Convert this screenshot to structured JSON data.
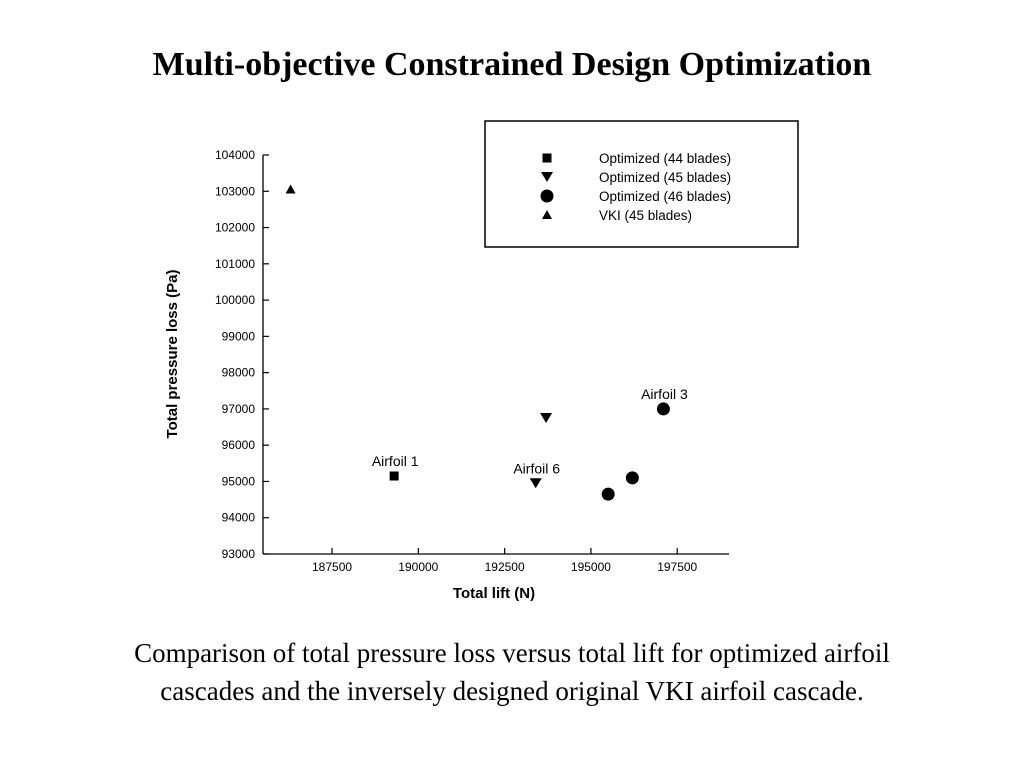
{
  "slide": {
    "title": "Multi-objective Constrained Design Optimization",
    "caption_line1": "Comparison of total pressure loss versus total lift for optimized airfoil",
    "caption_line2": "cascades and the inversely designed original VKI airfoil cascade."
  },
  "chart_data": {
    "type": "scatter",
    "title": "",
    "xlabel": "Total lift (N)",
    "ylabel": "Total pressure loss (Pa)",
    "xlim": [
      185500,
      199000
    ],
    "ylim": [
      93000,
      104000
    ],
    "xticks": [
      187500,
      190000,
      192500,
      195000,
      197500
    ],
    "yticks": [
      93000,
      94000,
      95000,
      96000,
      97000,
      98000,
      99000,
      100000,
      101000,
      102000,
      103000,
      104000
    ],
    "grid": false,
    "legend_position": "top-right",
    "series": [
      {
        "name": "Optimized (44 blades)",
        "marker": "square",
        "points": [
          {
            "x": 189300,
            "y": 95150
          }
        ]
      },
      {
        "name": "Optimized (45 blades)",
        "marker": "triangle-down",
        "points": [
          {
            "x": 193400,
            "y": 94950
          },
          {
            "x": 193700,
            "y": 96750
          }
        ]
      },
      {
        "name": "Optimized (46 blades)",
        "marker": "circle",
        "points": [
          {
            "x": 195500,
            "y": 94650
          },
          {
            "x": 196200,
            "y": 95100
          },
          {
            "x": 197100,
            "y": 97000
          }
        ]
      },
      {
        "name": "VKI (45 blades)",
        "marker": "triangle-up",
        "points": [
          {
            "x": 186300,
            "y": 103050
          }
        ]
      }
    ],
    "annotations": [
      {
        "text": "Airfoil 1",
        "x": 189300,
        "y": 95150
      },
      {
        "text": "Airfoil 6",
        "x": 193400,
        "y": 94950
      },
      {
        "text": "Airfoil 3",
        "x": 197100,
        "y": 97000
      }
    ]
  }
}
